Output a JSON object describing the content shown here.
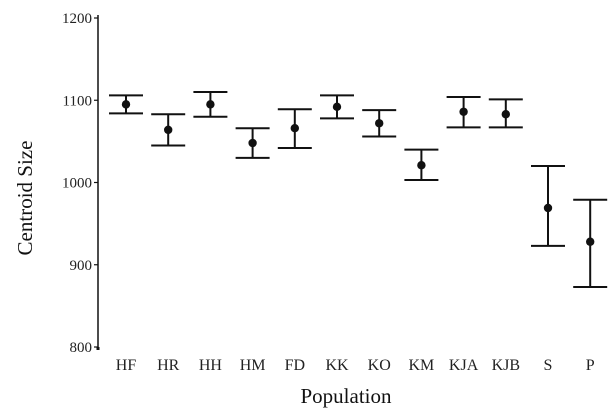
{
  "chart_data": {
    "type": "errorbar",
    "xlabel": "Population",
    "ylabel": "Centroid Size",
    "ylim": [
      800,
      1200
    ],
    "yticks": [
      800,
      900,
      1000,
      1100,
      1200
    ],
    "grid": false,
    "categories": [
      "HF",
      "HR",
      "HH",
      "HM",
      "FD",
      "KK",
      "KO",
      "KM",
      "KJA",
      "KJB",
      "S",
      "P"
    ],
    "means": [
      1095,
      1064,
      1095,
      1048,
      1066,
      1092,
      1072,
      1021,
      1086,
      1083,
      969,
      928
    ],
    "upper": [
      1106,
      1083,
      1110,
      1066,
      1089,
      1106,
      1088,
      1040,
      1104,
      1101,
      1020,
      979
    ],
    "lower": [
      1084,
      1045,
      1080,
      1030,
      1042,
      1078,
      1056,
      1003,
      1067,
      1067,
      923,
      873
    ]
  },
  "colors": {
    "marks": "#111111",
    "axis": "#111111"
  }
}
